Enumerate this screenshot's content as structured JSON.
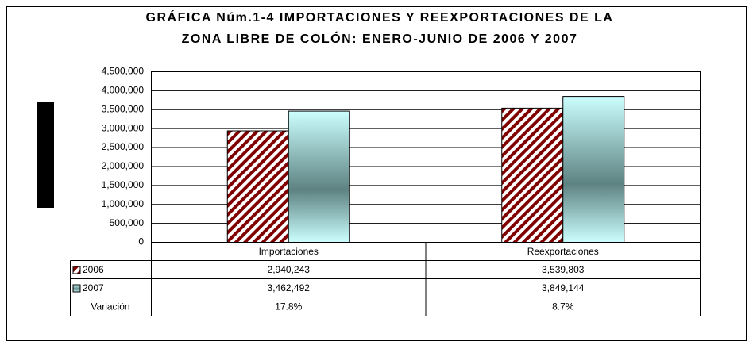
{
  "chart_data": {
    "type": "bar",
    "title": [
      "GRÁFICA Núm.1-4 IMPORTACIONES Y REEXPORTACIONES DE LA",
      "ZONA LIBRE DE COLÓN:  ENERO-JUNIO DE 2006 Y 2007"
    ],
    "categories": [
      "Importaciones",
      "Reexportaciones"
    ],
    "series": [
      {
        "name": "2006",
        "color": "#800000",
        "values": [
          2940243,
          3539803
        ],
        "value_labels": [
          "2,940,243",
          "3,539,803"
        ]
      },
      {
        "name": "2007",
        "color": "#ccffff",
        "values": [
          3462492,
          3849144
        ],
        "value_labels": [
          "3,462,492",
          "3,849,144"
        ]
      }
    ],
    "variation": {
      "name": "Variación",
      "values": [
        17.8,
        8.7
      ],
      "value_labels": [
        "17.8%",
        "8.7%"
      ]
    },
    "ylim": [
      0,
      4500000
    ],
    "yticks": [
      0,
      {
        "value": 500000,
        "label": "500,000"
      },
      {
        "value": 1000000,
        "label": "1,000,000"
      },
      {
        "value": 1500000,
        "label": "1,500,000"
      },
      {
        "value": 2000000,
        "label": "2,000,000"
      },
      {
        "value": 2500000,
        "label": "2,500,000"
      },
      {
        "value": 3000000,
        "label": "3,000,000"
      },
      {
        "value": 3500000,
        "label": "3,500,000"
      },
      {
        "value": 4000000,
        "label": "4,000,000"
      },
      {
        "value": 4500000,
        "label": "4,500,000"
      }
    ],
    "grid": true
  }
}
